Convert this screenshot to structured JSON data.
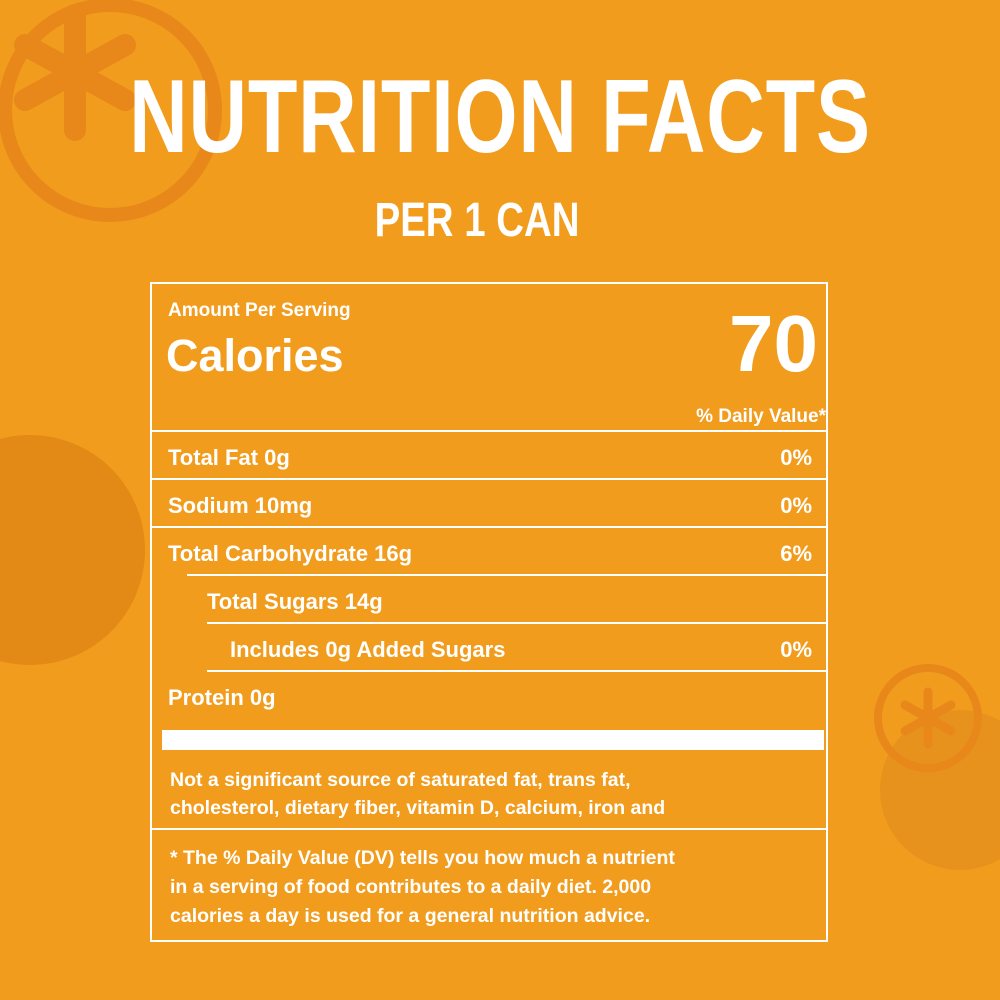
{
  "header": {
    "title": "NUTRITION FACTS",
    "subtitle": "PER 1 CAN"
  },
  "label": {
    "amount_per_serving": "Amount Per Serving",
    "calories_label": "Calories",
    "calories": 70,
    "daily_value_header": "% Daily Value*",
    "rows": [
      {
        "name": "Total Fat 0g",
        "dv": "0%"
      },
      {
        "name": "Sodium 10mg",
        "dv": "0%"
      },
      {
        "name": "Total Carbohydrate 16g",
        "dv": "6%",
        "sub": [
          {
            "name": "Total Sugars 14g",
            "sub": [
              {
                "name": "Includes 0g Added Sugars",
                "dv": "0%"
              }
            ]
          }
        ]
      },
      {
        "name": "Protein 0g"
      }
    ],
    "note": [
      "Not a significant source of saturated fat, trans fat,",
      "cholesterol, dietary fiber, vitamin D, calcium, iron and"
    ],
    "dv_note": [
      "* The % Daily Value (DV) tells  you how much a nutrient",
      "in a serving of food contributes to a daily diet. 2,000",
      "calories a day is used for a general nutrition advice."
    ]
  }
}
